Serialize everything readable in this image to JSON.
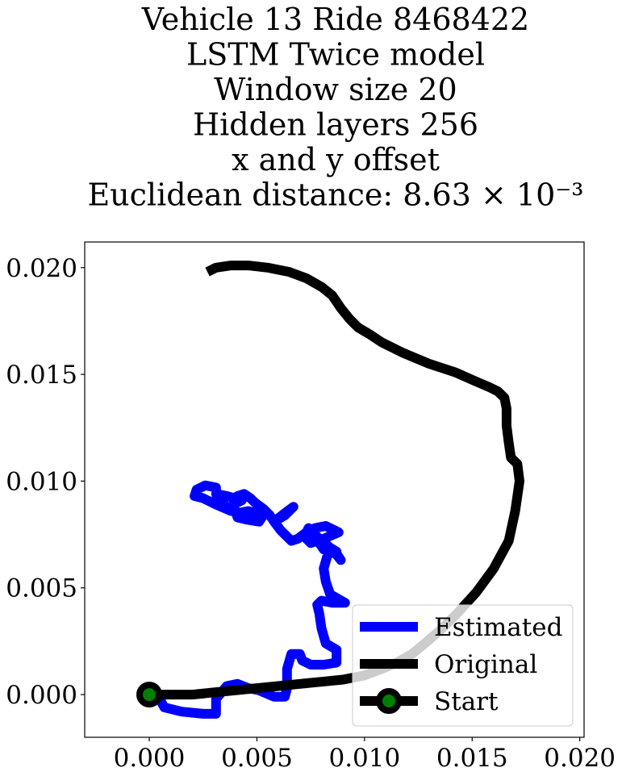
{
  "chart_data": {
    "type": "line",
    "title_lines": [
      "Vehicle 13 Ride 8468422",
      "LSTM Twice model",
      "Window size 20",
      "Hidden layers 256",
      "x and y offset",
      "Euclidean distance: 8.63 × 10⁻³"
    ],
    "xlim": [
      -0.003,
      0.0202
    ],
    "ylim": [
      -0.002,
      0.0212
    ],
    "x_ticks": [
      0.0,
      0.005,
      0.01,
      0.015,
      0.02
    ],
    "x_tick_labels": [
      "0.000",
      "0.005",
      "0.010",
      "0.015",
      "0.020"
    ],
    "y_ticks": [
      0.0,
      0.005,
      0.01,
      0.015,
      0.02
    ],
    "y_tick_labels": [
      "0.000",
      "0.005",
      "0.010",
      "0.015",
      "0.020"
    ],
    "grid": false,
    "legend_position": "lower-right",
    "series": [
      {
        "name": "Estimated",
        "color": "#0000ff",
        "x": [
          0.0,
          0.0002,
          0.0007,
          0.0015,
          0.0025,
          0.0031,
          0.0031,
          0.0036,
          0.0041,
          0.0046,
          0.0051,
          0.0058,
          0.0063,
          0.0064,
          0.0064,
          0.0066,
          0.007,
          0.0071,
          0.0075,
          0.0081,
          0.0087,
          0.0087,
          0.0082,
          0.008,
          0.0079,
          0.0078,
          0.008,
          0.0085,
          0.0091,
          0.0084,
          0.0082,
          0.0081,
          0.0083,
          0.0087,
          0.0082,
          0.0079,
          0.0081,
          0.0087,
          0.0089,
          0.0085,
          0.0079,
          0.0074,
          0.0072,
          0.0075,
          0.0081,
          0.0088,
          0.0082,
          0.0077,
          0.0073,
          0.0069,
          0.0066,
          0.0064,
          0.0061,
          0.0058,
          0.0063,
          0.0067,
          0.0063,
          0.0058,
          0.0056,
          0.0053,
          0.0049,
          0.0047,
          0.0044,
          0.0041,
          0.0039,
          0.0041,
          0.0045,
          0.0051,
          0.0053,
          0.0046,
          0.0041,
          0.0038,
          0.0039,
          0.0043,
          0.0036,
          0.0031,
          0.0032,
          0.0036,
          0.0038,
          0.0031,
          0.0025,
          0.0021,
          0.0022,
          0.0026,
          0.0031,
          0.0031
        ],
        "y": [
          0.0,
          0.0003,
          -0.0006,
          -0.0008,
          -0.0009,
          -0.0009,
          -0.0002,
          0.0004,
          0.0005,
          0.0003,
          0.0002,
          -0.0001,
          -0.0001,
          0.0003,
          0.0012,
          0.0019,
          0.0019,
          0.0016,
          0.0014,
          0.0014,
          0.0015,
          0.0021,
          0.0024,
          0.0031,
          0.0038,
          0.0042,
          0.0044,
          0.0043,
          0.0043,
          0.0047,
          0.0053,
          0.0059,
          0.0066,
          0.0067,
          0.007,
          0.0071,
          0.0068,
          0.0066,
          0.0063,
          0.0068,
          0.0073,
          0.0078,
          0.0074,
          0.0071,
          0.0073,
          0.0076,
          0.0079,
          0.0078,
          0.0076,
          0.0073,
          0.0072,
          0.0074,
          0.0077,
          0.0081,
          0.0084,
          0.0088,
          0.0085,
          0.0081,
          0.0084,
          0.0087,
          0.009,
          0.0092,
          0.0094,
          0.0093,
          0.0089,
          0.0083,
          0.0082,
          0.0081,
          0.0084,
          0.0086,
          0.0085,
          0.0087,
          0.0089,
          0.0091,
          0.0093,
          0.0094,
          0.0091,
          0.0088,
          0.0086,
          0.0089,
          0.0092,
          0.0093,
          0.0096,
          0.0098,
          0.0097,
          0.0095
        ]
      },
      {
        "name": "Original",
        "color": "#000000",
        "x": [
          0.0,
          0.0009,
          0.002,
          0.003,
          0.004,
          0.005,
          0.006,
          0.007,
          0.008,
          0.009,
          0.01,
          0.0108,
          0.0115,
          0.0122,
          0.0128,
          0.0135,
          0.0143,
          0.0152,
          0.016,
          0.0167,
          0.017,
          0.0172,
          0.0171,
          0.0168,
          0.0167,
          0.0166,
          0.0166,
          0.0165,
          0.0162,
          0.0158,
          0.0151,
          0.0142,
          0.013,
          0.0118,
          0.0108,
          0.0102,
          0.0097,
          0.0093,
          0.0089,
          0.0085,
          0.008,
          0.0073,
          0.0065,
          0.0055,
          0.0046,
          0.0038,
          0.0031,
          0.0027
        ],
        "y": [
          0.0,
          0.0,
          0.0,
          0.0001,
          0.0002,
          0.0003,
          0.0004,
          0.0005,
          0.0006,
          0.0007,
          0.0009,
          0.0012,
          0.0015,
          0.0019,
          0.0024,
          0.003,
          0.0038,
          0.0048,
          0.0059,
          0.0072,
          0.0086,
          0.01,
          0.0108,
          0.0111,
          0.0118,
          0.0126,
          0.0134,
          0.0139,
          0.0142,
          0.0144,
          0.0147,
          0.0151,
          0.0155,
          0.016,
          0.0165,
          0.0169,
          0.0172,
          0.0176,
          0.0181,
          0.0187,
          0.0191,
          0.0195,
          0.0198,
          0.02,
          0.0201,
          0.0201,
          0.02,
          0.0198
        ]
      }
    ],
    "start_marker": {
      "name": "Start",
      "x": 0.0,
      "y": 0.0,
      "edge_color": "#000000",
      "face_color": "#008000"
    }
  }
}
